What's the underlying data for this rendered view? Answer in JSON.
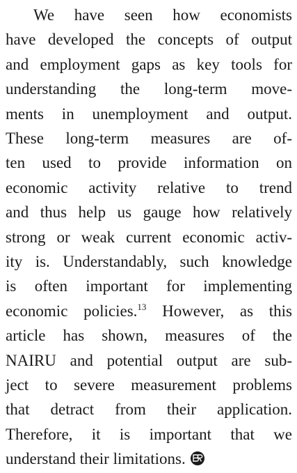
{
  "paragraph": {
    "lines": [
      "We have seen how economists",
      "have developed the concepts of output",
      "and employment gaps as key tools for",
      "understanding the long-term move-",
      "ments in unemployment and output.",
      "These long-term measures are of-",
      "ten used to provide information on",
      "economic activity relative to trend",
      "and thus help us gauge how relatively",
      "strong or weak current economic activ-",
      "ity is. Understandably, such knowledge",
      "is often important for implementing",
      [
        "economic policies.",
        "13",
        " However, as this"
      ],
      "article has shown, measures of the",
      "NAIRU and potential output are sub-",
      "ject to severe measurement problems",
      "that detract from their application.",
      "Therefore, it is important that we",
      "understand their limitations."
    ]
  }
}
